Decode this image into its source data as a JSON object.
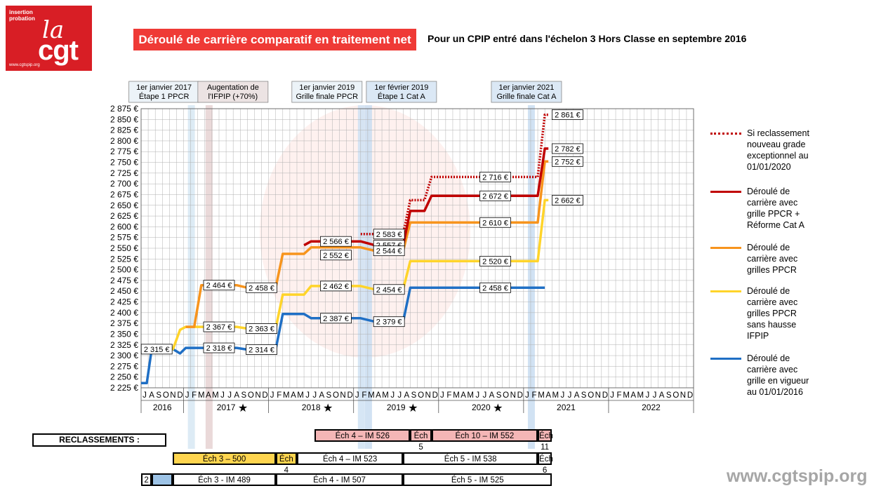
{
  "logo": {
    "subtitle_line1": "insertion",
    "subtitle_line2": "probation",
    "la": "la",
    "cgt": "cgt",
    "url": "www.cgtspip.org"
  },
  "title": "Déroulé de carrière comparatif en traitement net",
  "subtitle": "Pour un CPIP entré dans l'échelon 3 Hors Classe en  septembre 2016",
  "colors": {
    "red_dotted": "#c00000",
    "red": "#c00000",
    "orange": "#f7941d",
    "yellow": "#ffd42a",
    "blue": "#1f6fc5",
    "title_bg": "#ef3a36",
    "grid": "#b0b0b0"
  },
  "annotations": [
    {
      "line1": "1er janvier 2017",
      "line2": "Étape 1 PPCR",
      "band_month": 7,
      "band_color": "#d7e8f3"
    },
    {
      "line1": "Augentation de",
      "line2": "l'IFPIP (+70%)",
      "band_month": 9.5,
      "band_color": "#e6d2d2"
    },
    {
      "line1": "1er janvier 2019",
      "line2": "Grille finale PPCR",
      "band_month": 31,
      "band_color": "#cfe2f3"
    },
    {
      "line1": "1er février 2019",
      "line2": "Étape 1 Cat A",
      "band_month": 32,
      "band_color": "#c9ddf1"
    },
    {
      "line1": "1er janvier 2021",
      "line2": "Grille finale Cat A",
      "band_month": 55,
      "band_color": "#c9ddf1"
    }
  ],
  "chart_data": {
    "type": "line",
    "ylim": [
      2225,
      2875
    ],
    "ytick_step": 25,
    "months": [
      "J",
      "A",
      "S",
      "O",
      "N",
      "D",
      "J",
      "F",
      "M",
      "A",
      "M",
      "J",
      "J",
      "A",
      "S",
      "O",
      "N",
      "D",
      "J",
      "F",
      "M",
      "A",
      "M",
      "J",
      "J",
      "A",
      "S",
      "O",
      "N",
      "D",
      "J",
      "F",
      "M",
      "A",
      "M",
      "J",
      "J",
      "A",
      "S",
      "O",
      "N",
      "D",
      "J",
      "F",
      "M",
      "A",
      "M",
      "J",
      "J",
      "A",
      "S",
      "O",
      "N",
      "D",
      "J",
      "F",
      "M",
      "A",
      "M",
      "J",
      "J",
      "A",
      "S",
      "O",
      "N",
      "D",
      "J",
      "F",
      "M",
      "A",
      "M",
      "J",
      "J",
      "A",
      "S",
      "O",
      "N",
      "D"
    ],
    "years": [
      {
        "label": "2016",
        "start": 0,
        "end": 6,
        "star": false
      },
      {
        "label": "2017",
        "start": 6,
        "end": 18,
        "star": true
      },
      {
        "label": "2018",
        "start": 18,
        "end": 30,
        "star": true
      },
      {
        "label": "2019",
        "start": 30,
        "end": 42,
        "star": true
      },
      {
        "label": "2020",
        "start": 42,
        "end": 54,
        "star": true
      },
      {
        "label": "2021",
        "start": 54,
        "end": 66,
        "star": false
      },
      {
        "label": "2022",
        "start": 66,
        "end": 78,
        "star": false
      }
    ],
    "series": [
      {
        "name": "Déroulé de carrière avec grille en vigueur au 01/01/2016",
        "color": "#1f6fc5",
        "dash": false,
        "points": [
          [
            0,
            2236
          ],
          [
            0.8,
            2236
          ],
          [
            1.5,
            2315
          ],
          [
            4.5,
            2315
          ],
          [
            5.5,
            2305
          ],
          [
            6.3,
            2318
          ],
          [
            13.5,
            2318
          ],
          [
            15,
            2314
          ],
          [
            19,
            2314
          ],
          [
            20,
            2397
          ],
          [
            23,
            2397
          ],
          [
            24,
            2387
          ],
          [
            31,
            2387
          ],
          [
            33,
            2379
          ],
          [
            37,
            2379
          ],
          [
            38,
            2458
          ],
          [
            57,
            2458
          ]
        ]
      },
      {
        "name": "Déroulé de carrière avec grilles PPCR sans hausse IFPIP",
        "color": "#ffd42a",
        "dash": false,
        "points": [
          [
            3.5,
            2315
          ],
          [
            4.5,
            2315
          ],
          [
            5.5,
            2360
          ],
          [
            6.3,
            2367
          ],
          [
            13.5,
            2367
          ],
          [
            15,
            2363
          ],
          [
            19,
            2363
          ],
          [
            20,
            2442
          ],
          [
            23,
            2442
          ],
          [
            24,
            2462
          ],
          [
            31,
            2462
          ],
          [
            33,
            2454
          ],
          [
            37,
            2454
          ],
          [
            38,
            2520
          ],
          [
            56,
            2520
          ],
          [
            57,
            2662
          ],
          [
            57.5,
            2662
          ]
        ]
      },
      {
        "name": "Déroulé de carrière avec grilles PPCR",
        "color": "#f7941d",
        "dash": false,
        "points": [
          [
            6.3,
            2367
          ],
          [
            7.5,
            2367
          ],
          [
            8.5,
            2464
          ],
          [
            13.5,
            2464
          ],
          [
            15,
            2458
          ],
          [
            19,
            2458
          ],
          [
            20,
            2537
          ],
          [
            23,
            2537
          ],
          [
            24,
            2552
          ],
          [
            31,
            2552
          ],
          [
            33,
            2544
          ],
          [
            37,
            2544
          ],
          [
            38,
            2610
          ],
          [
            56,
            2610
          ],
          [
            57,
            2752
          ],
          [
            57.5,
            2752
          ]
        ]
      },
      {
        "name": "Déroulé de carrière avec grille PPCR + Réforme Cat A",
        "color": "#c00000",
        "dash": false,
        "points": [
          [
            23,
            2557
          ],
          [
            24,
            2566
          ],
          [
            31,
            2566
          ],
          [
            33,
            2557
          ],
          [
            37,
            2557
          ],
          [
            38,
            2637
          ],
          [
            40,
            2637
          ],
          [
            41,
            2672
          ],
          [
            56,
            2672
          ],
          [
            57,
            2782
          ],
          [
            57.5,
            2782
          ]
        ]
      },
      {
        "name": "Si reclassement nouveau grade exceptionnel au 01/01/2020",
        "color": "#c00000",
        "dash": true,
        "points": [
          [
            31,
            2583
          ],
          [
            33,
            2583
          ],
          [
            37,
            2583
          ],
          [
            38,
            2662
          ],
          [
            40,
            2662
          ],
          [
            41,
            2716
          ],
          [
            56,
            2716
          ],
          [
            57,
            2861
          ],
          [
            57.5,
            2861
          ]
        ]
      }
    ],
    "labels": [
      {
        "month": 2.2,
        "value": 2315,
        "text": "2 315 €"
      },
      {
        "month": 11,
        "value": 2464,
        "text": "2 464 €"
      },
      {
        "month": 17,
        "value": 2458,
        "text": "2 458 €"
      },
      {
        "month": 11,
        "value": 2367,
        "text": "2 367 €"
      },
      {
        "month": 17,
        "value": 2363,
        "text": "2 363 €"
      },
      {
        "month": 11,
        "value": 2318,
        "text": "2 318 €"
      },
      {
        "month": 17,
        "value": 2314,
        "text": "2 314 €"
      },
      {
        "month": 27.5,
        "value": 2566,
        "text": "2 566 €"
      },
      {
        "month": 27.5,
        "value": 2552,
        "text": "2 552 €",
        "below": true
      },
      {
        "month": 27.5,
        "value": 2462,
        "text": "2 462 €"
      },
      {
        "month": 27.5,
        "value": 2387,
        "text": "2 387 €"
      },
      {
        "month": 35,
        "value": 2583,
        "text": "2 583 €"
      },
      {
        "month": 35,
        "value": 2557,
        "text": "2 557 €"
      },
      {
        "month": 35,
        "value": 2544,
        "text": "2 544 €"
      },
      {
        "month": 35,
        "value": 2454,
        "text": "2 454 €"
      },
      {
        "month": 35,
        "value": 2379,
        "text": "2 379 €"
      },
      {
        "month": 50,
        "value": 2716,
        "text": "2 716 €"
      },
      {
        "month": 50,
        "value": 2672,
        "text": "2 672 €"
      },
      {
        "month": 50,
        "value": 2610,
        "text": "2 610 €"
      },
      {
        "month": 50,
        "value": 2520,
        "text": "2 520 €"
      },
      {
        "month": 50,
        "value": 2458,
        "text": "2 458 €"
      },
      {
        "month": 60.2,
        "value": 2861,
        "text": "2 861 €"
      },
      {
        "month": 60.2,
        "value": 2782,
        "text": "2 782 €"
      },
      {
        "month": 60.2,
        "value": 2752,
        "text": "2 752 €"
      },
      {
        "month": 60.2,
        "value": 2662,
        "text": "2 662 €"
      }
    ]
  },
  "legend": [
    {
      "text": "Si reclassement nouveau grade exceptionnel au 01/01/2020",
      "color": "#c00000",
      "dash": true
    },
    {
      "text": "Déroulé de carrière avec grille PPCR + Réforme Cat A",
      "color": "#c00000",
      "dash": false
    },
    {
      "text": "Déroulé de carrière avec grilles PPCR",
      "color": "#f7941d",
      "dash": false
    },
    {
      "text": "Déroulé de carrière avec grilles PPCR sans hausse IFPIP",
      "color": "#ffd42a",
      "dash": false
    },
    {
      "text": "Déroulé de carrière avec grille en vigueur au 01/01/2016",
      "color": "#1f6fc5",
      "dash": false
    }
  ],
  "reclassements": {
    "label": "RECLASSEMENTS :",
    "row1": [
      {
        "text": "Éch 4 – IM 526",
        "start": 24.5,
        "end": 38,
        "bg": "#f4b6b6"
      },
      {
        "text": "Éch 5",
        "start": 38,
        "end": 41,
        "bg": "#f4b6b6"
      },
      {
        "text": "Éch 10 – IM 552",
        "start": 41,
        "end": 56,
        "bg": "#f4b6b6"
      },
      {
        "text": "Éch 11",
        "start": 56,
        "end": 58,
        "bg": "#f4b6b6"
      }
    ],
    "row2": [
      {
        "text": "Éch 3 – 500",
        "start": 4.5,
        "end": 19,
        "bg": "#ffd54f"
      },
      {
        "text": "Éch 4",
        "start": 19,
        "end": 22,
        "bg": "#ffd54f"
      },
      {
        "text": "Éch 4 – IM 523",
        "start": 22,
        "end": 37,
        "bg": "#ffffff"
      },
      {
        "text": "Éch 5 - IM 538",
        "start": 37,
        "end": 56,
        "bg": "#ffffff"
      },
      {
        "text": "Éch 6",
        "start": 56,
        "end": 58,
        "bg": "#ffffff"
      }
    ],
    "row3": [
      {
        "text": "2",
        "start": 0,
        "end": 1.5,
        "bg": "#ffffff"
      },
      {
        "text": "",
        "start": 1.5,
        "end": 4.5,
        "bg": "#9dc3e6"
      },
      {
        "text": "Éch 3 - IM 489",
        "start": 4.5,
        "end": 19,
        "bg": "#ffffff"
      },
      {
        "text": "Éch 4 - IM 507",
        "start": 19,
        "end": 37,
        "bg": "#ffffff"
      },
      {
        "text": "Éch 5 - IM 525",
        "start": 37,
        "end": 58,
        "bg": "#ffffff"
      }
    ]
  },
  "footer_url": "www.cgtspip.org"
}
